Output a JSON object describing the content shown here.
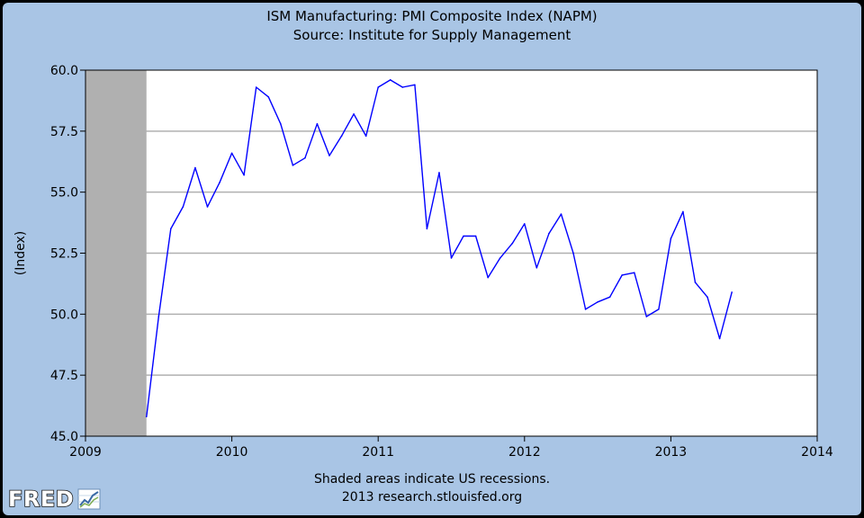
{
  "header": {
    "title": "ISM Manufacturing: PMI Composite Index (NAPM)",
    "subtitle": "Source: Institute for Supply Management"
  },
  "footer": {
    "note": "Shaded areas indicate US recessions.",
    "credit": "2013 research.stlouisfed.org"
  },
  "logo": {
    "text": "FRED",
    "icon": "line-graph-icon"
  },
  "colors": {
    "background": "#a9c5e5",
    "plot_background": "#ffffff",
    "line": "#0000ff",
    "recession": "#b0b0b0",
    "grid": "#b0b0b0"
  },
  "chart_data": {
    "type": "line",
    "title": "ISM Manufacturing: PMI Composite Index (NAPM)",
    "subtitle": "Source: Institute for Supply Management",
    "xlabel": "",
    "ylabel": "(Index)",
    "xlim": [
      "2009-01-01",
      "2014-01-01"
    ],
    "ylim": [
      45.0,
      60.0
    ],
    "x_ticks": [
      "2009",
      "2010",
      "2011",
      "2012",
      "2013",
      "2014"
    ],
    "y_ticks": [
      "45.0",
      "47.5",
      "50.0",
      "52.5",
      "55.0",
      "57.5",
      "60.0"
    ],
    "grid": true,
    "recession_shading": [
      [
        "2009-01-01",
        "2009-06-01"
      ]
    ],
    "series": [
      {
        "x": [
          "2009-06-01",
          "2009-07-01",
          "2009-08-01",
          "2009-09-01",
          "2009-10-01",
          "2009-11-01",
          "2009-12-01",
          "2010-01-01",
          "2010-02-01",
          "2010-03-01",
          "2010-04-01",
          "2010-05-01",
          "2010-06-01",
          "2010-07-01",
          "2010-08-01",
          "2010-09-01",
          "2010-10-01",
          "2010-11-01",
          "2010-12-01",
          "2011-01-01",
          "2011-02-01",
          "2011-03-01",
          "2011-04-01",
          "2011-05-01",
          "2011-06-01",
          "2011-07-01",
          "2011-08-01",
          "2011-09-01",
          "2011-10-01",
          "2011-11-01",
          "2011-12-01",
          "2012-01-01",
          "2012-02-01",
          "2012-03-01",
          "2012-04-01",
          "2012-05-01",
          "2012-06-01",
          "2012-07-01",
          "2012-08-01",
          "2012-09-01",
          "2012-10-01",
          "2012-11-01",
          "2012-12-01",
          "2013-01-01",
          "2013-02-01",
          "2013-03-01",
          "2013-04-01",
          "2013-05-01",
          "2013-06-01"
        ],
        "values": [
          45.8,
          49.9,
          53.5,
          54.4,
          56.0,
          54.4,
          55.4,
          56.6,
          55.7,
          59.3,
          58.9,
          57.8,
          56.1,
          56.4,
          57.8,
          56.5,
          57.3,
          58.2,
          57.3,
          59.3,
          59.6,
          59.3,
          59.4,
          53.5,
          55.8,
          52.3,
          53.2,
          53.2,
          51.5,
          52.3,
          52.9,
          53.7,
          51.9,
          53.3,
          54.1,
          52.5,
          50.2,
          50.5,
          50.7,
          51.6,
          51.7,
          49.9,
          50.2,
          53.1,
          54.2,
          51.3,
          50.7,
          49.0,
          50.9
        ]
      }
    ]
  }
}
